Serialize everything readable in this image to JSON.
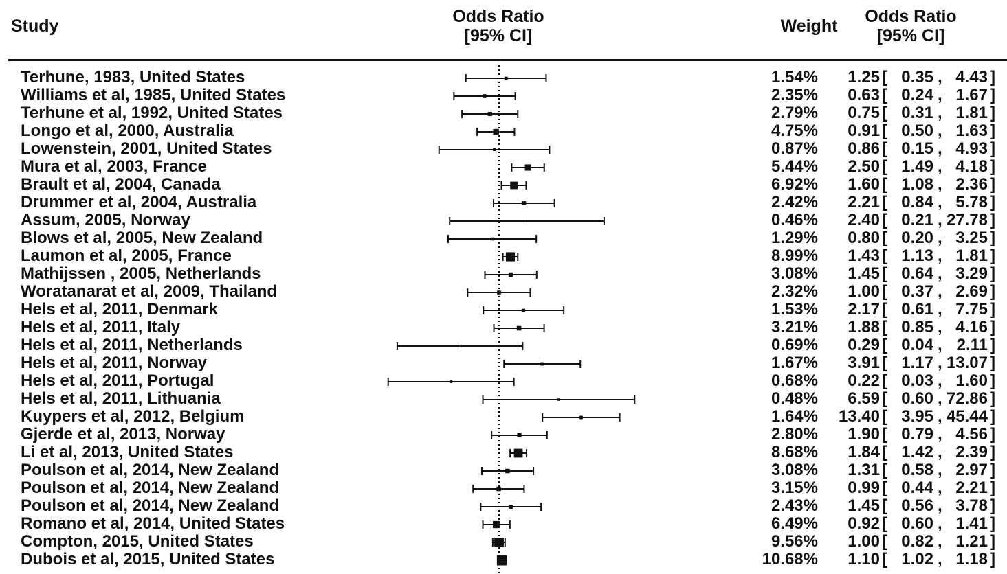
{
  "header": {
    "study": "Study",
    "odds_ratio": "Odds Ratio",
    "ci": "[95% CI]",
    "weight": "Weight",
    "odds_ratio_right": "Odds Ratio",
    "ci_right": "[95% CI]"
  },
  "chart_data": {
    "type": "forest",
    "x_scale": "log",
    "reference_line": 1,
    "reference_line_style": "dotted",
    "grid": false,
    "studies": [
      {
        "label": "Terhune, 1983, United States",
        "weight": "1.54%",
        "or": 1.25,
        "lo": 0.35,
        "hi": 4.43,
        "or_text": "1.25",
        "lo_text": "0.35",
        "hi_text": "4.43"
      },
      {
        "label": "Williams et al, 1985, United States",
        "weight": "2.35%",
        "or": 0.63,
        "lo": 0.24,
        "hi": 1.67,
        "or_text": "0.63",
        "lo_text": "0.24",
        "hi_text": "1.67"
      },
      {
        "label": "Terhune et al, 1992, United States",
        "weight": "2.79%",
        "or": 0.75,
        "lo": 0.31,
        "hi": 1.81,
        "or_text": "0.75",
        "lo_text": "0.31",
        "hi_text": "1.81"
      },
      {
        "label": "Longo et al, 2000, Australia",
        "weight": "4.75%",
        "or": 0.91,
        "lo": 0.5,
        "hi": 1.63,
        "or_text": "0.91",
        "lo_text": "0.50",
        "hi_text": "1.63"
      },
      {
        "label": "Lowenstein, 2001, United States",
        "weight": "0.87%",
        "or": 0.86,
        "lo": 0.15,
        "hi": 4.93,
        "or_text": "0.86",
        "lo_text": "0.15",
        "hi_text": "4.93"
      },
      {
        "label": "Mura et al, 2003, France",
        "weight": "5.44%",
        "or": 2.5,
        "lo": 1.49,
        "hi": 4.18,
        "or_text": "2.50",
        "lo_text": "1.49",
        "hi_text": "4.18"
      },
      {
        "label": "Brault et al, 2004, Canada",
        "weight": "6.92%",
        "or": 1.6,
        "lo": 1.08,
        "hi": 2.36,
        "or_text": "1.60",
        "lo_text": "1.08",
        "hi_text": "2.36"
      },
      {
        "label": "Drummer et al, 2004, Australia",
        "weight": "2.42%",
        "or": 2.21,
        "lo": 0.84,
        "hi": 5.78,
        "or_text": "2.21",
        "lo_text": "0.84",
        "hi_text": "5.78"
      },
      {
        "label": "Assum, 2005, Norway",
        "weight": "0.46%",
        "or": 2.4,
        "lo": 0.21,
        "hi": 27.78,
        "or_text": "2.40",
        "lo_text": "0.21",
        "hi_text": "27.78"
      },
      {
        "label": "Blows et al, 2005, New Zealand",
        "weight": "1.29%",
        "or": 0.8,
        "lo": 0.2,
        "hi": 3.25,
        "or_text": "0.80",
        "lo_text": "0.20",
        "hi_text": "3.25"
      },
      {
        "label": "Laumon et al, 2005, France",
        "weight": "8.99%",
        "or": 1.43,
        "lo": 1.13,
        "hi": 1.81,
        "or_text": "1.43",
        "lo_text": "1.13",
        "hi_text": "1.81"
      },
      {
        "label": "Mathijssen , 2005, Netherlands",
        "weight": "3.08%",
        "or": 1.45,
        "lo": 0.64,
        "hi": 3.29,
        "or_text": "1.45",
        "lo_text": "0.64",
        "hi_text": "3.29"
      },
      {
        "label": "Woratanarat et al, 2009, Thailand",
        "weight": "2.32%",
        "or": 1.0,
        "lo": 0.37,
        "hi": 2.69,
        "or_text": "1.00",
        "lo_text": "0.37",
        "hi_text": "2.69"
      },
      {
        "label": "Hels et al, 2011, Denmark",
        "weight": "1.53%",
        "or": 2.17,
        "lo": 0.61,
        "hi": 7.75,
        "or_text": "2.17",
        "lo_text": "0.61",
        "hi_text": "7.75"
      },
      {
        "label": "Hels et al, 2011, Italy",
        "weight": "3.21%",
        "or": 1.88,
        "lo": 0.85,
        "hi": 4.16,
        "or_text": "1.88",
        "lo_text": "0.85",
        "hi_text": "4.16"
      },
      {
        "label": "Hels et al, 2011, Netherlands",
        "weight": "0.69%",
        "or": 0.29,
        "lo": 0.04,
        "hi": 2.11,
        "or_text": "0.29",
        "lo_text": "0.04",
        "hi_text": "2.11"
      },
      {
        "label": "Hels et al, 2011, Norway",
        "weight": "1.67%",
        "or": 3.91,
        "lo": 1.17,
        "hi": 13.07,
        "or_text": "3.91",
        "lo_text": "1.17",
        "hi_text": "13.07"
      },
      {
        "label": "Hels et al, 2011, Portugal",
        "weight": "0.68%",
        "or": 0.22,
        "lo": 0.03,
        "hi": 1.6,
        "or_text": "0.22",
        "lo_text": "0.03",
        "hi_text": "1.60"
      },
      {
        "label": "Hels et al, 2011, Lithuania",
        "weight": "0.48%",
        "or": 6.59,
        "lo": 0.6,
        "hi": 72.86,
        "or_text": "6.59",
        "lo_text": "0.60",
        "hi_text": "72.86"
      },
      {
        "label": "Kuypers et al, 2012, Belgium",
        "weight": "1.64%",
        "or": 13.4,
        "lo": 3.95,
        "hi": 45.44,
        "or_text": "13.40",
        "lo_text": "3.95",
        "hi_text": "45.44"
      },
      {
        "label": "Gjerde et al, 2013, Norway",
        "weight": "2.80%",
        "or": 1.9,
        "lo": 0.79,
        "hi": 4.56,
        "or_text": "1.90",
        "lo_text": "0.79",
        "hi_text": "4.56"
      },
      {
        "label": "Li et al, 2013, United States",
        "weight": "8.68%",
        "or": 1.84,
        "lo": 1.42,
        "hi": 2.39,
        "or_text": "1.84",
        "lo_text": "1.42",
        "hi_text": "2.39"
      },
      {
        "label": "Poulson et al, 2014, New Zealand",
        "weight": "3.08%",
        "or": 1.31,
        "lo": 0.58,
        "hi": 2.97,
        "or_text": "1.31",
        "lo_text": "0.58",
        "hi_text": "2.97"
      },
      {
        "label": "Poulson et al, 2014, New Zealand",
        "weight": "3.15%",
        "or": 0.99,
        "lo": 0.44,
        "hi": 2.21,
        "or_text": "0.99",
        "lo_text": "0.44",
        "hi_text": "2.21"
      },
      {
        "label": "Poulson et al, 2014, New Zealand",
        "weight": "2.43%",
        "or": 1.45,
        "lo": 0.56,
        "hi": 3.78,
        "or_text": "1.45",
        "lo_text": "0.56",
        "hi_text": "3.78"
      },
      {
        "label": "Romano et al, 2014, United States",
        "weight": "6.49%",
        "or": 0.92,
        "lo": 0.6,
        "hi": 1.41,
        "or_text": "0.92",
        "lo_text": "0.60",
        "hi_text": "1.41"
      },
      {
        "label": "Compton, 2015, United States",
        "weight": "9.56%",
        "or": 1.0,
        "lo": 0.82,
        "hi": 1.21,
        "or_text": "1.00",
        "lo_text": "0.82",
        "hi_text": "1.21"
      },
      {
        "label": "Dubois et al, 2015, United States",
        "weight": "10.68%",
        "or": 1.1,
        "lo": 1.02,
        "hi": 1.18,
        "or_text": "1.10",
        "lo_text": "1.02",
        "hi_text": "1.18"
      }
    ]
  }
}
